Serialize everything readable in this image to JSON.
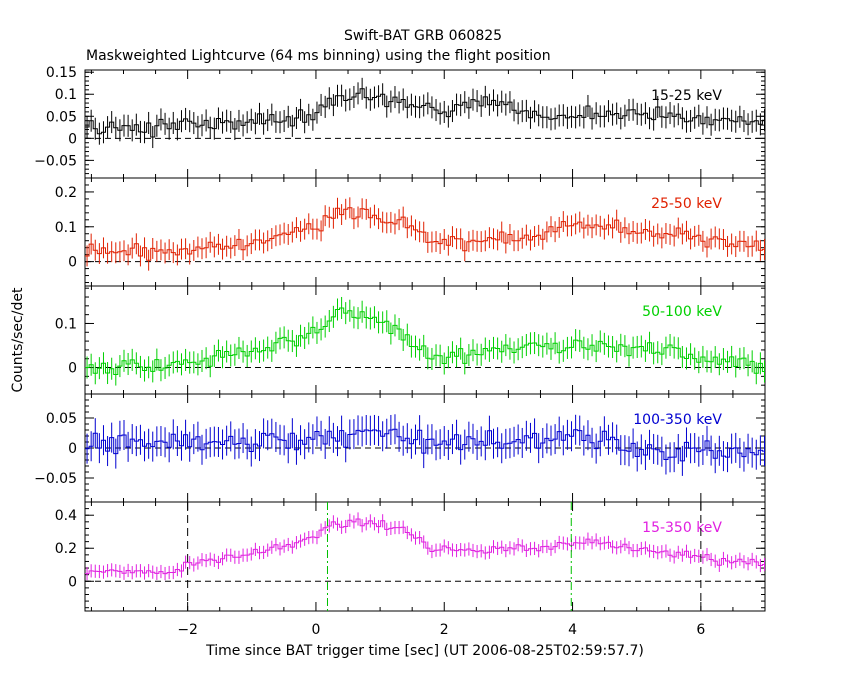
{
  "title": "Swift-BAT GRB 060825",
  "subtitle": "Maskweighted Lightcurve (64 ms binning) using the flight position",
  "ylabel": "Counts/sec/det",
  "xlabel": "Time since BAT trigger time [sec] (UT 2006-08-25T02:59:57.7)",
  "chart_data": [
    {
      "type": "line",
      "name": "15-25 keV",
      "color": "#000000",
      "xlim": [
        -3.6,
        7.0
      ],
      "ylim": [
        -0.09,
        0.155
      ],
      "yticks": [
        -0.05,
        0,
        0.05,
        0.1,
        0.15
      ],
      "ytick_labels": [
        "−0.05",
        "0",
        "0.05",
        "0.1",
        "0.15"
      ],
      "sigma": 0.025,
      "profile": [
        [
          -3.6,
          0.02
        ],
        [
          -2.0,
          0.03
        ],
        [
          -1.0,
          0.035
        ],
        [
          0.0,
          0.05
        ],
        [
          0.2,
          0.085
        ],
        [
          0.8,
          0.1
        ],
        [
          1.5,
          0.08
        ],
        [
          2.0,
          0.06
        ],
        [
          2.5,
          0.085
        ],
        [
          3.5,
          0.05
        ],
        [
          4.5,
          0.055
        ],
        [
          7.0,
          0.035
        ]
      ]
    },
    {
      "type": "line",
      "name": "25-50 keV",
      "color": "#e02000",
      "xlim": [
        -3.6,
        7.0
      ],
      "ylim": [
        -0.07,
        0.24
      ],
      "yticks": [
        0,
        0.1,
        0.2
      ],
      "ytick_labels": [
        "0",
        "0.1",
        "0.2"
      ],
      "sigma": 0.03,
      "profile": [
        [
          -3.6,
          0.03
        ],
        [
          -2.0,
          0.035
        ],
        [
          -1.0,
          0.06
        ],
        [
          0.0,
          0.1
        ],
        [
          0.2,
          0.13
        ],
        [
          0.6,
          0.14
        ],
        [
          1.4,
          0.11
        ],
        [
          1.8,
          0.06
        ],
        [
          2.5,
          0.06
        ],
        [
          3.5,
          0.08
        ],
        [
          4.0,
          0.11
        ],
        [
          5.0,
          0.09
        ],
        [
          6.0,
          0.07
        ],
        [
          7.0,
          0.04
        ]
      ]
    },
    {
      "type": "line",
      "name": "50-100 keV",
      "color": "#00d000",
      "xlim": [
        -3.6,
        7.0
      ],
      "ylim": [
        -0.06,
        0.185
      ],
      "yticks": [
        0,
        0.1
      ],
      "ytick_labels": [
        "0",
        "0.1"
      ],
      "sigma": 0.025,
      "profile": [
        [
          -3.6,
          0.0
        ],
        [
          -2.0,
          0.01
        ],
        [
          -1.0,
          0.04
        ],
        [
          0.0,
          0.08
        ],
        [
          0.4,
          0.13
        ],
        [
          0.8,
          0.12
        ],
        [
          1.4,
          0.07
        ],
        [
          1.8,
          0.02
        ],
        [
          2.5,
          0.035
        ],
        [
          3.5,
          0.05
        ],
        [
          4.5,
          0.05
        ],
        [
          5.5,
          0.035
        ],
        [
          7.0,
          0.0
        ]
      ]
    },
    {
      "type": "line",
      "name": "100-350 keV",
      "color": "#0000d0",
      "xlim": [
        -3.6,
        7.0
      ],
      "ylim": [
        -0.09,
        0.09
      ],
      "yticks": [
        -0.05,
        0,
        0.05
      ],
      "ytick_labels": [
        "−0.05",
        "0",
        "0.05"
      ],
      "sigma": 0.025,
      "profile": [
        [
          -3.6,
          0.005
        ],
        [
          0.0,
          0.015
        ],
        [
          1.0,
          0.025
        ],
        [
          2.0,
          0.005
        ],
        [
          4.0,
          0.02
        ],
        [
          5.0,
          -0.005
        ],
        [
          7.0,
          -0.005
        ]
      ]
    },
    {
      "type": "line",
      "name": "15-350 keV",
      "color": "#e020e0",
      "xlim": [
        -3.6,
        7.0
      ],
      "ylim": [
        -0.18,
        0.48
      ],
      "yticks": [
        0,
        0.2,
        0.4
      ],
      "ytick_labels": [
        "0",
        "0.2",
        "0.4"
      ],
      "sigma": 0.04,
      "profile": [
        [
          -3.6,
          0.07
        ],
        [
          -2.2,
          0.05
        ],
        [
          -2.0,
          0.1
        ],
        [
          -1.0,
          0.17
        ],
        [
          0.0,
          0.27
        ],
        [
          0.2,
          0.34
        ],
        [
          0.8,
          0.36
        ],
        [
          1.4,
          0.32
        ],
        [
          1.8,
          0.2
        ],
        [
          2.5,
          0.19
        ],
        [
          3.5,
          0.2
        ],
        [
          4.2,
          0.25
        ],
        [
          5.0,
          0.2
        ],
        [
          6.0,
          0.14
        ],
        [
          7.0,
          0.1
        ]
      ]
    }
  ],
  "xticks": [
    -2,
    0,
    2,
    4,
    6
  ],
  "xtick_labels": [
    "−2",
    "0",
    "2",
    "4",
    "6"
  ],
  "vlines": [
    {
      "x": -2.0,
      "color": "#000000",
      "style": "dashed"
    },
    {
      "x": 6.0,
      "color": "#000000",
      "style": "dashed"
    },
    {
      "x": 0.18,
      "color": "#00c000",
      "style": "dashdot"
    },
    {
      "x": 3.98,
      "color": "#00c000",
      "style": "dashdot"
    }
  ],
  "bin_width": 0.064
}
